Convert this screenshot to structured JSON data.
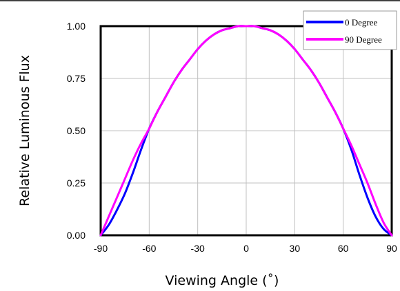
{
  "chart_data": {
    "type": "line",
    "title": "",
    "xlabel": "Viewing Angle (˚)",
    "ylabel": "Relative Luminous Flux",
    "xlim": [
      -90,
      90
    ],
    "ylim": [
      0,
      1
    ],
    "x_ticks": [
      "-90",
      "-60",
      "-30",
      "0",
      "30",
      "60",
      "90"
    ],
    "y_ticks": [
      "0.00",
      "0.25",
      "0.50",
      "0.75",
      "1.00"
    ],
    "grid": true,
    "legend_position": "top-right",
    "series": [
      {
        "name": "0 Degree",
        "color": "#0000ff",
        "x": [
          -90,
          -85,
          -80,
          -75,
          -70,
          -65,
          -60,
          -55,
          -50,
          -45,
          -40,
          -35,
          -30,
          -25,
          -20,
          -15,
          -10,
          -5,
          0,
          5,
          10,
          15,
          20,
          25,
          30,
          35,
          40,
          45,
          50,
          55,
          60,
          65,
          70,
          75,
          80,
          85,
          90
        ],
        "y": [
          0.0,
          0.05,
          0.12,
          0.2,
          0.3,
          0.41,
          0.51,
          0.59,
          0.66,
          0.73,
          0.79,
          0.84,
          0.89,
          0.93,
          0.96,
          0.98,
          0.99,
          1.0,
          1.0,
          1.0,
          0.99,
          0.98,
          0.96,
          0.93,
          0.89,
          0.84,
          0.79,
          0.73,
          0.66,
          0.59,
          0.51,
          0.41,
          0.29,
          0.18,
          0.09,
          0.03,
          0.0
        ]
      },
      {
        "name": "90 Degree",
        "color": "#ff00ff",
        "x": [
          -90,
          -85,
          -80,
          -75,
          -70,
          -65,
          -60,
          -55,
          -50,
          -45,
          -40,
          -35,
          -30,
          -25,
          -20,
          -15,
          -10,
          -5,
          0,
          5,
          10,
          15,
          20,
          25,
          30,
          35,
          40,
          45,
          50,
          55,
          60,
          65,
          70,
          75,
          80,
          85,
          90
        ],
        "y": [
          0.0,
          0.09,
          0.18,
          0.27,
          0.36,
          0.44,
          0.51,
          0.59,
          0.66,
          0.73,
          0.79,
          0.84,
          0.89,
          0.93,
          0.96,
          0.98,
          0.99,
          1.0,
          1.0,
          1.0,
          0.99,
          0.98,
          0.96,
          0.93,
          0.89,
          0.84,
          0.79,
          0.73,
          0.66,
          0.59,
          0.51,
          0.43,
          0.34,
          0.25,
          0.15,
          0.06,
          0.0
        ]
      }
    ]
  }
}
